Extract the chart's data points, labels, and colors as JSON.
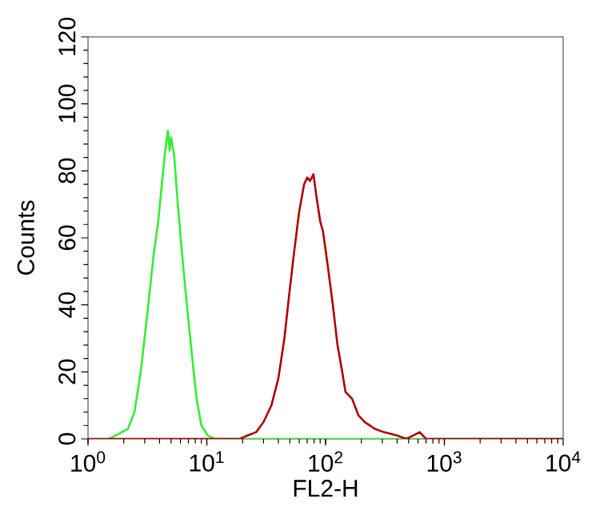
{
  "chart_data": {
    "type": "line",
    "xlabel": "FL2-H",
    "ylabel": "Counts",
    "log": "x",
    "xlim": [
      1,
      10000
    ],
    "ylim": [
      0,
      120
    ],
    "xticks": [
      {
        "value": 1,
        "label": "10$^{0}$"
      },
      {
        "value": 10,
        "label": "10$^{1}$"
      },
      {
        "value": 100,
        "label": "10$^{2}$"
      },
      {
        "value": 1000,
        "label": "10$^{3}$"
      },
      {
        "value": 10000,
        "label": "10$^{4}$"
      }
    ],
    "yticks": [
      0,
      20,
      40,
      60,
      80,
      100,
      120
    ],
    "series": [
      {
        "color": "#33ee33",
        "x": [
          1.5,
          1.7,
          2.17,
          2.46,
          2.78,
          3.15,
          3.57,
          3.9,
          4.16,
          4.43,
          4.7,
          4.87,
          5.0,
          5.3,
          5.7,
          6.2,
          6.8,
          7.5,
          8.2,
          9.0,
          10.2,
          11.6,
          10000
        ],
        "values": [
          0,
          1,
          3,
          8,
          20,
          37,
          55,
          65,
          75,
          85,
          92,
          86,
          90,
          85,
          70,
          55,
          40,
          25,
          12,
          4,
          1,
          0,
          0
        ]
      },
      {
        "color": "#b00000",
        "x": [
          1,
          19,
          22,
          26,
          30,
          35,
          40,
          45,
          49,
          54,
          60,
          66,
          70,
          74,
          79,
          84,
          90,
          95,
          104,
          115,
          126,
          138,
          147,
          167,
          189,
          214,
          260,
          310,
          400,
          480,
          620,
          700,
          10000
        ],
        "values": [
          0,
          0,
          1,
          2,
          5,
          10,
          18,
          30,
          42,
          55,
          68,
          76,
          78,
          77,
          79,
          72,
          65,
          62,
          52,
          40,
          28,
          20,
          14,
          12,
          7,
          5,
          3,
          2,
          1,
          0,
          2,
          0,
          0
        ]
      }
    ]
  }
}
